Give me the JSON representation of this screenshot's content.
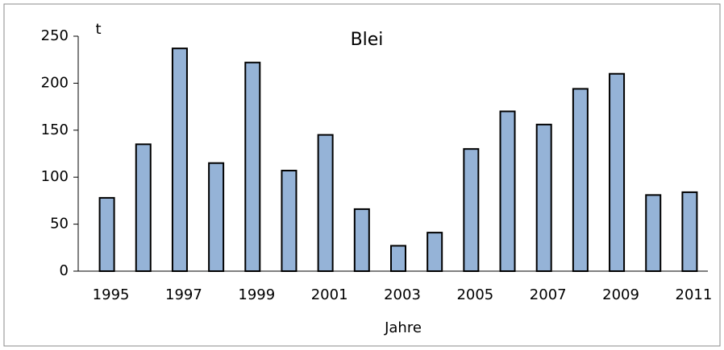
{
  "chart_data": {
    "type": "bar",
    "title": "Blei",
    "y_label": "t",
    "x_label": "Jahre",
    "categories": [
      "1995",
      null,
      "1997",
      null,
      "1999",
      null,
      "2001",
      null,
      "2003",
      null,
      "2005",
      null,
      "2007",
      null,
      "2009",
      null,
      "2011"
    ],
    "values": [
      78,
      135,
      237,
      115,
      222,
      107,
      145,
      66,
      27,
      41,
      130,
      170,
      156,
      194,
      210,
      81,
      84
    ],
    "color": "#95b3d7",
    "ylim": [
      0,
      250
    ],
    "yticks": [
      0,
      50,
      100,
      150,
      200,
      250
    ],
    "grid": false
  }
}
